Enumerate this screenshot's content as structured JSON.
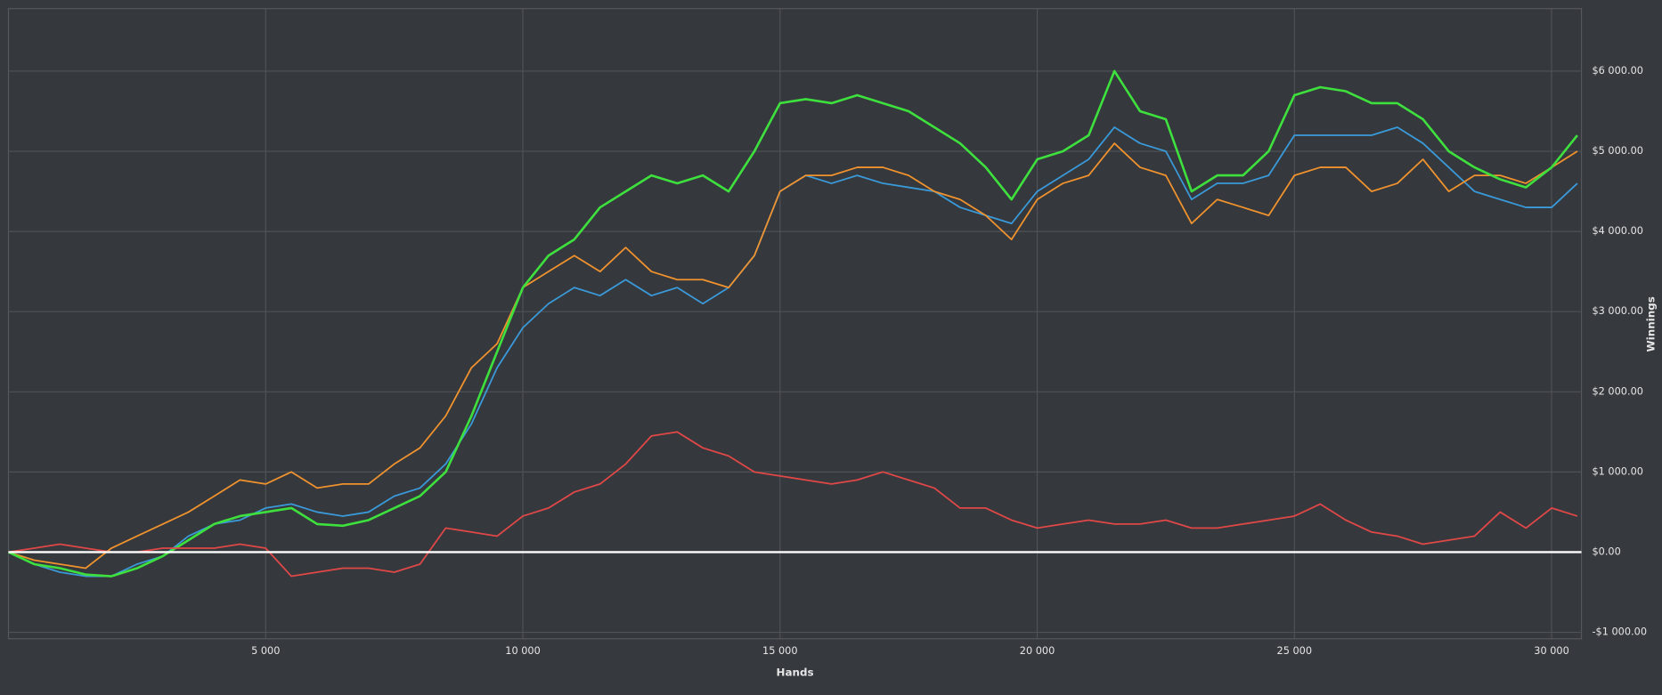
{
  "chart_data": {
    "type": "line",
    "xlabel": "Hands",
    "ylabel": "Winnings",
    "grid": true,
    "zero_line": true,
    "xlim": [
      0,
      30580
    ],
    "ylim": [
      -1080,
      6780
    ],
    "xticks": [
      {
        "value": 5000,
        "label": "5 000"
      },
      {
        "value": 10000,
        "label": "10 000"
      },
      {
        "value": 15000,
        "label": "15 000"
      },
      {
        "value": 20000,
        "label": "20 000"
      },
      {
        "value": 25000,
        "label": "25 000"
      },
      {
        "value": 30000,
        "label": "30 000"
      }
    ],
    "yticks": [
      {
        "value": -1000,
        "label": "-$1 000.00"
      },
      {
        "value": 0,
        "label": "$0.00"
      },
      {
        "value": 1000,
        "label": "$1 000.00"
      },
      {
        "value": 2000,
        "label": "$2 000.00"
      },
      {
        "value": 3000,
        "label": "$3 000.00"
      },
      {
        "value": 4000,
        "label": "$4 000.00"
      },
      {
        "value": 5000,
        "label": "$5 000.00"
      },
      {
        "value": 6000,
        "label": "$6 000.00"
      }
    ],
    "x": [
      0,
      500,
      1000,
      1500,
      2000,
      2500,
      3000,
      3500,
      4000,
      4500,
      5000,
      5500,
      6000,
      6500,
      7000,
      7500,
      8000,
      8500,
      9000,
      9500,
      10000,
      10500,
      11000,
      11500,
      12000,
      12500,
      13000,
      13500,
      14000,
      14500,
      15000,
      15500,
      16000,
      16500,
      17000,
      17500,
      18000,
      18500,
      19000,
      19500,
      20000,
      20500,
      21000,
      21500,
      22000,
      22500,
      23000,
      23500,
      24000,
      24500,
      25000,
      25500,
      26000,
      26500,
      27000,
      27500,
      28000,
      28500,
      29000,
      29500,
      30000,
      30500
    ],
    "series": [
      {
        "color": "#3a9ad9",
        "values": [
          0,
          -150,
          -250,
          -300,
          -300,
          -150,
          -50,
          200,
          350,
          400,
          550,
          600,
          500,
          450,
          500,
          700,
          800,
          1100,
          1600,
          2300,
          2800,
          3100,
          3300,
          3200,
          3400,
          3200,
          3300,
          3100,
          3300,
          3700,
          4500,
          4700,
          4600,
          4700,
          4600,
          4550,
          4500,
          4300,
          4200,
          4100,
          4500,
          4700,
          4900,
          5300,
          5100,
          5000,
          4400,
          4600,
          4600,
          4700,
          5200,
          5200,
          5200,
          5200,
          5300,
          5100,
          4800,
          4500,
          4400,
          4300,
          4300,
          4600
        ]
      },
      {
        "color": "#f0922e",
        "values": [
          0,
          -100,
          -150,
          -200,
          50,
          200,
          350,
          500,
          700,
          900,
          850,
          1000,
          800,
          850,
          850,
          1100,
          1300,
          1700,
          2300,
          2600,
          3300,
          3500,
          3700,
          3500,
          3800,
          3500,
          3400,
          3400,
          3300,
          3700,
          4500,
          4700,
          4700,
          4800,
          4800,
          4700,
          4500,
          4400,
          4200,
          3900,
          4400,
          4600,
          4700,
          5100,
          4800,
          4700,
          4100,
          4400,
          4300,
          4200,
          4700,
          4800,
          4800,
          4500,
          4600,
          4900,
          4500,
          4700,
          4700,
          4600,
          4800,
          5000
        ]
      },
      {
        "color": "#3ee03e",
        "values": [
          0,
          -150,
          -200,
          -280,
          -300,
          -200,
          -50,
          150,
          350,
          450,
          500,
          550,
          350,
          330,
          400,
          550,
          700,
          1000,
          1700,
          2500,
          3300,
          3700,
          3900,
          4300,
          4500,
          4700,
          4600,
          4700,
          4500,
          5000,
          5600,
          5650,
          5600,
          5700,
          5600,
          5500,
          5300,
          5100,
          4800,
          4400,
          4900,
          5000,
          5200,
          6000,
          5500,
          5400,
          4500,
          4700,
          4700,
          5000,
          5700,
          5800,
          5750,
          5600,
          5600,
          5400,
          5000,
          4800,
          4650,
          4550,
          4800,
          5200
        ]
      },
      {
        "color": "#e04848",
        "values": [
          0,
          50,
          100,
          50,
          0,
          0,
          50,
          50,
          50,
          100,
          50,
          -300,
          -250,
          -200,
          -200,
          -250,
          -150,
          300,
          250,
          200,
          450,
          550,
          750,
          850,
          1100,
          1450,
          1500,
          1300,
          1200,
          1000,
          950,
          900,
          850,
          900,
          1000,
          900,
          800,
          550,
          550,
          400,
          300,
          350,
          400,
          350,
          350,
          400,
          300,
          300,
          350,
          400,
          450,
          600,
          400,
          250,
          200,
          100,
          150,
          200,
          500,
          300,
          550,
          450
        ]
      }
    ]
  }
}
